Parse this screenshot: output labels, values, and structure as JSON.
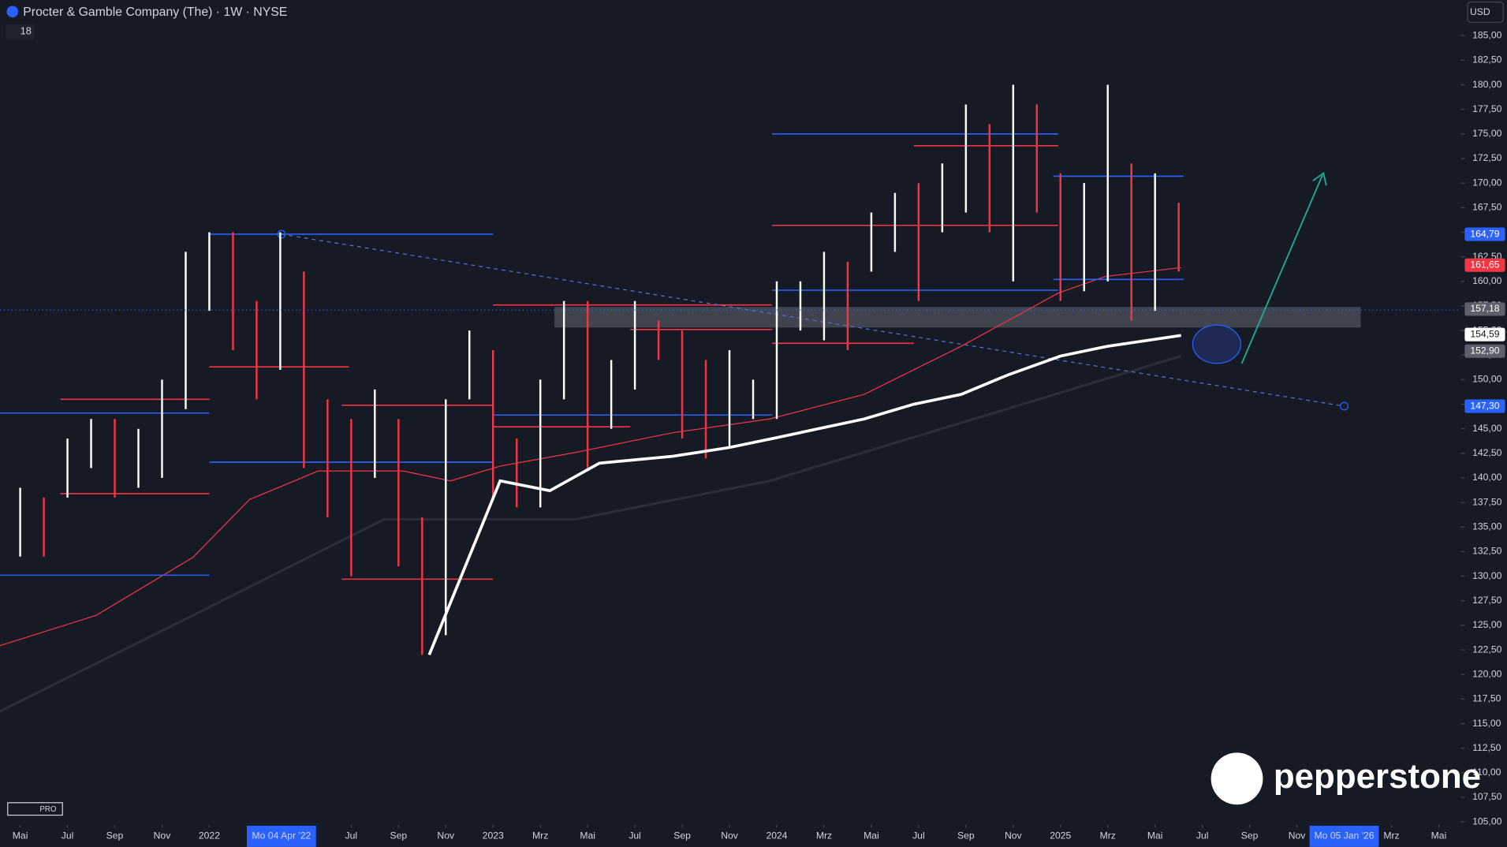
{
  "header": {
    "title": "Procter & Gamble Company (The) · 1W · NYSE",
    "indicators": "18",
    "currency": "USD",
    "watermark": "pepperstone",
    "badge": "PRO"
  },
  "chart_data": {
    "type": "range-bar",
    "x": [
      0,
      1,
      2,
      3,
      4,
      5,
      6,
      7,
      8,
      9,
      10,
      11,
      12,
      13,
      14,
      15,
      16,
      17,
      18,
      19,
      20,
      21,
      22,
      23,
      24,
      25,
      26,
      27,
      28,
      29,
      30,
      31,
      32,
      33,
      34,
      35,
      36,
      37,
      38,
      39,
      40,
      41,
      42,
      43,
      44,
      45,
      46,
      47,
      48,
      49
    ],
    "high": [
      139,
      138,
      144,
      146,
      146,
      145,
      150,
      163,
      165,
      165,
      158,
      165,
      161,
      148,
      146,
      149,
      146,
      136,
      148,
      155,
      153,
      144,
      150,
      158,
      158,
      152,
      158,
      156,
      155,
      152,
      153,
      150,
      160,
      160,
      163,
      162,
      167,
      169,
      170,
      172,
      178,
      176,
      180,
      178,
      171,
      170,
      180,
      172,
      171,
      168
    ],
    "low": [
      132,
      132,
      138,
      141,
      138,
      139,
      140,
      147,
      157,
      153,
      148,
      151,
      141,
      136,
      130,
      140,
      131,
      122,
      124,
      148,
      138,
      137,
      137,
      148,
      141,
      145,
      149,
      152,
      144,
      142,
      143,
      146,
      146,
      155,
      154,
      153,
      161,
      163,
      158,
      165,
      167,
      165,
      160,
      167,
      158,
      159,
      160,
      156,
      157,
      161
    ],
    "colors": [
      "#ffffff",
      "#f23645",
      "#ffffff",
      "#ffffff",
      "#f23645",
      "#ffffff",
      "#ffffff",
      "#ffffff",
      "#ffffff",
      "#f23645",
      "#f23645",
      "#ffffff",
      "#f23645",
      "#f23645",
      "#f23645",
      "#ffffff",
      "#f23645",
      "#f23645",
      "#ffffff",
      "#ffffff",
      "#f23645",
      "#f23645",
      "#ffffff",
      "#ffffff",
      "#f23645",
      "#ffffff",
      "#ffffff",
      "#f23645",
      "#f23645",
      "#f23645",
      "#ffffff",
      "#ffffff",
      "#ffffff",
      "#ffffff",
      "#ffffff",
      "#f23645",
      "#ffffff",
      "#ffffff",
      "#f23645",
      "#ffffff",
      "#ffffff",
      "#f23645",
      "#ffffff",
      "#f23645",
      "#f23645",
      "#ffffff",
      "#ffffff",
      "#f23645",
      "#ffffff",
      "#f23645"
    ],
    "series": [
      {
        "color": "#ffffff",
        "x": [
          17.3,
          20.3,
          22.4,
          24.5,
          27.6,
          30,
          32,
          35.7,
          37.8,
          39.8,
          41.8,
          44,
          46,
          49.1
        ],
        "values": [
          122,
          139.7,
          138.7,
          141.5,
          142.2,
          143.1,
          144.1,
          146,
          147.5,
          148.5,
          150.5,
          152.4,
          153.4,
          154.5
        ]
      },
      {
        "color": "#f23645",
        "x": [
          -0.9,
          3.2,
          7.3,
          9.7,
          12.6,
          16.2,
          18.2,
          20.3,
          23.5,
          27.6,
          31.7,
          35.7,
          39.8,
          43.9,
          45.9,
          49.1
        ],
        "values": [
          122.9,
          126,
          131.9,
          137.8,
          140.7,
          140.7,
          139.7,
          141.2,
          142.6,
          144.6,
          146,
          148.5,
          153.4,
          158.8,
          160.5,
          161.4
        ]
      },
      {
        "color": "#2a2e39",
        "x": [
          -0.9,
          7.3,
          15.4,
          23.5,
          31.7,
          39.8,
          49.1
        ],
        "values": [
          116.2,
          126,
          135.8,
          135.8,
          139.7,
          145.6,
          152.4
        ]
      }
    ],
    "levels": [
      {
        "value": 164.8,
        "from": 8,
        "to": 20,
        "color": "#2962ff"
      },
      {
        "value": 146.6,
        "from": -0.9,
        "to": 8,
        "color": "#2962ff"
      },
      {
        "value": 130.1,
        "from": -0.9,
        "to": 8,
        "color": "#2962ff"
      },
      {
        "value": 148,
        "from": 1.7,
        "to": 8,
        "color": "#f23645"
      },
      {
        "value": 138.4,
        "from": 1.7,
        "to": 8,
        "color": "#f23645"
      },
      {
        "value": 151.3,
        "from": 8,
        "to": 13.9,
        "color": "#f23645"
      },
      {
        "value": 141.6,
        "from": 8,
        "to": 20,
        "color": "#2962ff"
      },
      {
        "value": 129.7,
        "from": 13.6,
        "to": 20,
        "color": "#f23645"
      },
      {
        "value": 147.4,
        "from": 13.6,
        "to": 20,
        "color": "#f23645"
      },
      {
        "value": 146.4,
        "from": 20,
        "to": 31.8,
        "color": "#2962ff"
      },
      {
        "value": 145.2,
        "from": 20,
        "to": 25.8,
        "color": "#f23645"
      },
      {
        "value": 157.6,
        "from": 20,
        "to": 31.8,
        "color": "#f23645"
      },
      {
        "value": 155.1,
        "from": 25.8,
        "to": 31.8,
        "color": "#f23645"
      },
      {
        "value": 175,
        "from": 31.8,
        "to": 43.9,
        "color": "#2962ff"
      },
      {
        "value": 173.8,
        "from": 37.8,
        "to": 43.9,
        "color": "#f23645"
      },
      {
        "value": 165.7,
        "from": 31.8,
        "to": 43.9,
        "color": "#f23645"
      },
      {
        "value": 159.1,
        "from": 31.8,
        "to": 43.9,
        "color": "#2962ff"
      },
      {
        "value": 153.7,
        "from": 31.8,
        "to": 37.8,
        "color": "#f23645"
      },
      {
        "value": 170.7,
        "from": 43.7,
        "to": 49.2,
        "color": "#2962ff"
      },
      {
        "value": 160.2,
        "from": 43.7,
        "to": 49.2,
        "color": "#2962ff"
      }
    ],
    "zone": {
      "low": 155.3,
      "high": 157.4,
      "from": 22.6,
      "to": 56.7
    },
    "trendline": {
      "x": [
        11.05,
        56
      ],
      "values": [
        164.8,
        147.3
      ]
    },
    "ylim": [
      105,
      185
    ],
    "xlim": [
      -0.9,
      60.9
    ],
    "yticks": [
      {
        "value": 105,
        "label": "105,00"
      },
      {
        "value": 107.5,
        "label": "107,50"
      },
      {
        "value": 110,
        "label": "110,00"
      },
      {
        "value": 112.5,
        "label": "112,50"
      },
      {
        "value": 115,
        "label": "115,00"
      },
      {
        "value": 117.5,
        "label": "117,50"
      },
      {
        "value": 120,
        "label": "120,00"
      },
      {
        "value": 122.5,
        "label": "122,50"
      },
      {
        "value": 125,
        "label": "125,00"
      },
      {
        "value": 127.5,
        "label": "127,50"
      },
      {
        "value": 130,
        "label": "130,00"
      },
      {
        "value": 132.5,
        "label": "132,50"
      },
      {
        "value": 135,
        "label": "135,00"
      },
      {
        "value": 137.5,
        "label": "137,50"
      },
      {
        "value": 140,
        "label": "140,00"
      },
      {
        "value": 142.5,
        "label": "142,50"
      },
      {
        "value": 145,
        "label": "145,00"
      },
      {
        "value": 147.5,
        "label": "147,50"
      },
      {
        "value": 150,
        "label": "150,00"
      },
      {
        "value": 152.5,
        "label": "152,50"
      },
      {
        "value": 155,
        "label": "155,00"
      },
      {
        "value": 157.5,
        "label": "157,50"
      },
      {
        "value": 160,
        "label": "160,00"
      },
      {
        "value": 162.5,
        "label": "162,50"
      },
      {
        "value": 165,
        "label": "165,00"
      },
      {
        "value": 167.5,
        "label": "167,50"
      },
      {
        "value": 170,
        "label": "170,00"
      },
      {
        "value": 172.5,
        "label": "172,50"
      },
      {
        "value": 175,
        "label": "175,00"
      },
      {
        "value": 177.5,
        "label": "177,50"
      },
      {
        "value": 180,
        "label": "180,00"
      },
      {
        "value": 182.5,
        "label": "182,50"
      },
      {
        "value": 185,
        "label": "185,00"
      }
    ],
    "xticks": [
      {
        "value": 0,
        "label": "Mai"
      },
      {
        "value": 2,
        "label": "Jul"
      },
      {
        "value": 4,
        "label": "Sep"
      },
      {
        "value": 6,
        "label": "Nov"
      },
      {
        "value": 8,
        "label": "2022"
      },
      {
        "value": 11.05,
        "label": "Mo 04 Apr '22"
      },
      {
        "value": 14,
        "label": "Jul"
      },
      {
        "value": 16,
        "label": "Sep"
      },
      {
        "value": 18,
        "label": "Nov"
      },
      {
        "value": 20,
        "label": "2023"
      },
      {
        "value": 22,
        "label": "Mrz"
      },
      {
        "value": 24,
        "label": "Mai"
      },
      {
        "value": 26,
        "label": "Jul"
      },
      {
        "value": 28,
        "label": "Sep"
      },
      {
        "value": 30,
        "label": "Nov"
      },
      {
        "value": 32,
        "label": "2024"
      },
      {
        "value": 34,
        "label": "Mrz"
      },
      {
        "value": 36,
        "label": "Mai"
      },
      {
        "value": 38,
        "label": "Jul"
      },
      {
        "value": 40,
        "label": "Sep"
      },
      {
        "value": 42,
        "label": "Nov"
      },
      {
        "value": 44,
        "label": "2025"
      },
      {
        "value": 46,
        "label": "Mrz"
      },
      {
        "value": 48,
        "label": "Mai"
      },
      {
        "value": 50,
        "label": "Jul"
      },
      {
        "value": 52,
        "label": "Sep"
      },
      {
        "value": 54,
        "label": "Nov"
      },
      {
        "value": 56,
        "label": "Mo 05 Jan '26"
      },
      {
        "value": 58,
        "label": "Mrz"
      },
      {
        "value": 60,
        "label": "Mai"
      }
    ],
    "highlight_xticks": [
      5,
      27
    ],
    "price_labels": [
      {
        "value": 164.79,
        "label": "164,79",
        "color": "#2962ff"
      },
      {
        "value": 161.65,
        "label": "161,65",
        "color": "#f23645"
      },
      {
        "value": 157.18,
        "label": "157,18",
        "color": "#5d606b"
      },
      {
        "value": 154.59,
        "label": "154,59",
        "color": "#ffffff"
      },
      {
        "value": 152.9,
        "label": "152,90",
        "color": "#5d606b"
      },
      {
        "value": 147.3,
        "label": "147,30",
        "color": "#2962ff"
      }
    ]
  }
}
